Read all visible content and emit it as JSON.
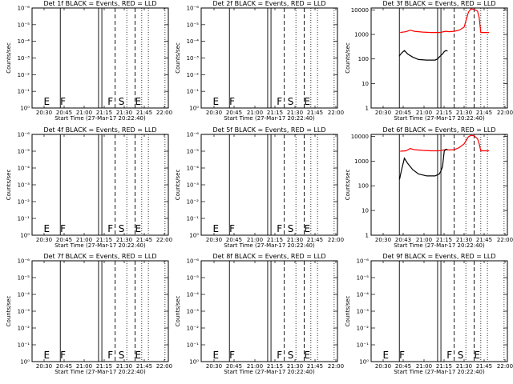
{
  "figure": {
    "background": "#ffffff",
    "colors": {
      "events": "#000000",
      "lld": "#ff0000",
      "frame": "#000000"
    }
  },
  "chart_data": [
    {
      "type": "line",
      "title": "Det 1f BLACK = Events, RED = LLD",
      "xlabel": "Start Time (27-Mar-17 20:22:40)",
      "ylabel": "Counts/sec",
      "xticks": [
        "20:30",
        "20:45",
        "21:00",
        "21:15",
        "21:30",
        "21:45",
        "22:00"
      ],
      "yticks": [
        "10⁰",
        "10⁻¹",
        "10⁻²",
        "10⁻³",
        "10⁻⁴",
        "10⁻⁵",
        "10⁻⁶"
      ],
      "ylog_top_label": "10⁻⁶",
      "markers": [
        {
          "label": "E",
          "minute": 20.5
        },
        {
          "label": "F",
          "minute": 20.7
        },
        {
          "label": "F",
          "minute": 21.27
        },
        {
          "label": "S",
          "minute": 21.4
        },
        {
          "label": "E",
          "minute": 21.6
        }
      ],
      "series": []
    },
    {
      "type": "line",
      "title": "Det 2f BLACK = Events, RED = LLD",
      "xlabel": "Start Time (27-Mar-17 20:22:40)",
      "ylabel": "Counts/sec",
      "xticks": [
        "20:30",
        "20:45",
        "21:00",
        "21:15",
        "21:30",
        "21:45",
        "22:00"
      ],
      "yticks": [
        "10⁰",
        "10⁻¹",
        "10⁻²",
        "10⁻³",
        "10⁻⁴",
        "10⁻⁵",
        "10⁻⁶"
      ],
      "markers": [
        {
          "label": "E",
          "minute": 20.5
        },
        {
          "label": "F",
          "minute": 20.7
        },
        {
          "label": "F",
          "minute": 21.27
        },
        {
          "label": "S",
          "minute": 21.4
        },
        {
          "label": "E",
          "minute": 21.6
        }
      ],
      "series": []
    },
    {
      "type": "line",
      "title": "Det 3f BLACK = Events, RED = LLD",
      "xlabel": "Start Time (27-Mar-17 20:22:40)",
      "ylabel": "Counts/sec",
      "xticks": [
        "20:30",
        "20:45",
        "21:00",
        "21:15",
        "21:30",
        "21:45",
        "22:00"
      ],
      "yticks": [
        "1",
        "10",
        "100",
        "1000",
        "10000"
      ],
      "ylim": [
        1,
        12000
      ],
      "yscale": "log",
      "series": [
        {
          "color": "red",
          "x": [
            20.73,
            20.8,
            20.85,
            20.9,
            21.0,
            21.1,
            21.18,
            21.22,
            21.25,
            21.28,
            21.32,
            21.38,
            21.44,
            21.5,
            21.55,
            21.58,
            21.62,
            21.66,
            21.68,
            21.7,
            21.8
          ],
          "y": [
            1200,
            1300,
            1500,
            1350,
            1250,
            1200,
            1200,
            1210,
            1300,
            1350,
            1300,
            1350,
            1500,
            2000,
            8000,
            11000,
            10500,
            9000,
            5000,
            1200,
            1200
          ]
        },
        {
          "color": "black",
          "x": [
            20.72,
            20.725,
            20.73,
            20.75,
            20.78,
            20.82,
            20.88,
            20.95,
            21.05,
            21.15,
            21.18,
            21.2,
            21.22,
            21.24,
            21.26,
            21.28,
            21.3
          ],
          "y": [
            130,
            140,
            150,
            180,
            220,
            160,
            120,
            95,
            90,
            90,
            100,
            120,
            140,
            160,
            200,
            220,
            210
          ]
        }
      ]
    },
    {
      "type": "line",
      "title": "Det 4f BLACK = Events, RED = LLD",
      "xlabel": "Start Time (27-Mar-17 20:22:40)",
      "ylabel": "Counts/sec",
      "xticks": [
        "20:30",
        "20:45",
        "21:00",
        "21:15",
        "21:30",
        "21:45",
        "22:00"
      ],
      "yticks": [
        "10⁰",
        "10⁻¹",
        "10⁻²",
        "10⁻³",
        "10⁻⁴",
        "10⁻⁵",
        "10⁻⁶"
      ],
      "markers": [
        {
          "label": "E",
          "minute": 20.5
        },
        {
          "label": "F",
          "minute": 20.7
        },
        {
          "label": "F",
          "minute": 21.27
        },
        {
          "label": "S",
          "minute": 21.4
        },
        {
          "label": "E",
          "minute": 21.6
        }
      ],
      "series": []
    },
    {
      "type": "line",
      "title": "Det 5f BLACK = Events, RED = LLD",
      "xlabel": "Start Time (27-Mar-17 20:22:40)",
      "ylabel": "Counts/sec",
      "xticks": [
        "20:30",
        "20:45",
        "21:00",
        "21:15",
        "21:30",
        "21:45",
        "22:00"
      ],
      "yticks": [
        "10⁰",
        "10⁻¹",
        "10⁻²",
        "10⁻³",
        "10⁻⁴",
        "10⁻⁵",
        "10⁻⁶"
      ],
      "markers": [
        {
          "label": "E",
          "minute": 20.5
        },
        {
          "label": "F",
          "minute": 20.7
        },
        {
          "label": "F",
          "minute": 21.27
        },
        {
          "label": "S",
          "minute": 21.4
        },
        {
          "label": "E",
          "minute": 21.6
        }
      ],
      "series": []
    },
    {
      "type": "line",
      "title": "Det 6f BLACK = Events, RED = LLD",
      "xlabel": "Start Time (27-Mar-17 20:22:40)",
      "ylabel": "Counts/sec",
      "xticks": [
        "20:30",
        "20:43",
        "21:00",
        "21:15",
        "21:30",
        "21:45",
        "22:00"
      ],
      "yticks": [
        "1",
        "10",
        "100",
        "1000",
        "10000"
      ],
      "ylim": [
        1,
        12000
      ],
      "yscale": "log",
      "series": [
        {
          "color": "red",
          "x": [
            20.73,
            20.8,
            20.85,
            20.9,
            21.0,
            21.1,
            21.18,
            21.22,
            21.25,
            21.28,
            21.32,
            21.38,
            21.44,
            21.5,
            21.55,
            21.58,
            21.62,
            21.66,
            21.68,
            21.7,
            21.8
          ],
          "y": [
            2500,
            2600,
            3200,
            2900,
            2700,
            2600,
            2600,
            2650,
            2800,
            2900,
            2800,
            2900,
            3500,
            5000,
            9500,
            11000,
            10500,
            8000,
            5000,
            2600,
            2600
          ]
        },
        {
          "color": "black",
          "x": [
            20.72,
            20.725,
            20.73,
            20.75,
            20.78,
            20.82,
            20.88,
            20.95,
            21.05,
            21.15,
            21.18,
            21.2,
            21.22,
            21.24,
            21.26,
            21.28,
            21.3
          ],
          "y": [
            180,
            200,
            250,
            500,
            1300,
            800,
            450,
            300,
            250,
            250,
            280,
            300,
            400,
            600,
            2500,
            3000,
            2900
          ]
        }
      ]
    },
    {
      "type": "line",
      "title": "Det 7f BLACK = Events, RED = LLD",
      "xlabel": "Start Time (27-Mar-17 20:22:40)",
      "ylabel": "Counts/sec",
      "xticks": [
        "20:30",
        "20:45",
        "21:00",
        "21:15",
        "21:30",
        "21:45",
        "22:00"
      ],
      "yticks": [
        "10⁰",
        "10⁻¹",
        "10⁻²",
        "10⁻³",
        "10⁻⁴",
        "10⁻⁵",
        "10⁻⁶"
      ],
      "markers": [
        {
          "label": "E",
          "minute": 20.5
        },
        {
          "label": "F",
          "minute": 20.7
        },
        {
          "label": "F",
          "minute": 21.27
        },
        {
          "label": "S",
          "minute": 21.4
        },
        {
          "label": "E",
          "minute": 21.6
        }
      ],
      "series": []
    },
    {
      "type": "line",
      "title": "Det 8f BLACK = Events, RED = LLD",
      "xlabel": "Start Time (27-Mar-17 20:22:40)",
      "ylabel": "Counts/sec",
      "xticks": [
        "20:30",
        "20:45",
        "21:00",
        "21:15",
        "21:30",
        "21:45",
        "22:00"
      ],
      "yticks": [
        "10⁰",
        "10⁻¹",
        "10⁻²",
        "10⁻³",
        "10⁻⁴",
        "10⁻⁵",
        "10⁻⁶"
      ],
      "markers": [
        {
          "label": "E",
          "minute": 20.5
        },
        {
          "label": "F",
          "minute": 20.7
        },
        {
          "label": "F",
          "minute": 21.27
        },
        {
          "label": "S",
          "minute": 21.4
        },
        {
          "label": "E",
          "minute": 21.6
        }
      ],
      "series": []
    },
    {
      "type": "line",
      "title": "Det 9f BLACK = Events, RED = LLD",
      "xlabel": "Start Time (27-Mar-17 20:22:40)",
      "ylabel": "Counts/sec",
      "xticks": [
        "20:30",
        "20:45",
        "21:00",
        "21:15",
        "21:30",
        "21:45",
        "22:00"
      ],
      "yticks": [
        "10⁰",
        "10⁻¹",
        "10⁻²",
        "10⁻³",
        "10⁻⁴",
        "10⁻⁵",
        "10⁻⁶"
      ],
      "markers": [
        {
          "label": "E",
          "minute": 20.5
        },
        {
          "label": "F",
          "minute": 20.7
        },
        {
          "label": "F",
          "minute": 21.27
        },
        {
          "label": "S",
          "minute": 21.4
        },
        {
          "label": "E",
          "minute": 21.6
        }
      ],
      "series": []
    }
  ]
}
